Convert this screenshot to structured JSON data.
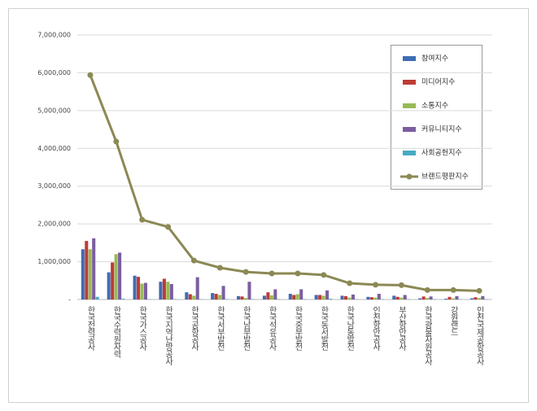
{
  "chart_data": {
    "type": "bar",
    "categories": [
      "한국전력공사",
      "한국수력원자력",
      "한국가스공사",
      "한국지역난방공사",
      "한국공항공사",
      "한국서부발전",
      "한국남부발전",
      "한국석유공사",
      "한국중부발전",
      "한국동서발전",
      "한국남동발전",
      "인천항만공사",
      "부산항만공사",
      "한국광물자원공사",
      "강원랜드",
      "인천국제공항공사"
    ],
    "series": [
      {
        "name": "참여지수",
        "color": "#3f6cb3",
        "values": [
          1330000,
          720000,
          630000,
          470000,
          190000,
          170000,
          90000,
          100000,
          150000,
          120000,
          100000,
          70000,
          100000,
          30000,
          20000,
          30000
        ]
      },
      {
        "name": "미디어지수",
        "color": "#bf3b36",
        "values": [
          1550000,
          980000,
          600000,
          550000,
          140000,
          150000,
          80000,
          190000,
          120000,
          120000,
          90000,
          60000,
          70000,
          80000,
          70000,
          60000
        ]
      },
      {
        "name": "소통지수",
        "color": "#99ba55",
        "values": [
          1330000,
          1200000,
          420000,
          470000,
          100000,
          120000,
          40000,
          110000,
          140000,
          100000,
          50000,
          50000,
          50000,
          40000,
          30000,
          40000
        ]
      },
      {
        "name": "커뮤니티지수",
        "color": "#7c5e9f",
        "values": [
          1620000,
          1240000,
          440000,
          410000,
          590000,
          360000,
          470000,
          270000,
          270000,
          240000,
          130000,
          150000,
          120000,
          80000,
          90000,
          90000
        ]
      },
      {
        "name": "사회공헌지수",
        "color": "#47a9c3",
        "values": [
          70000,
          20000,
          10000,
          10000,
          10000,
          10000,
          10000,
          10000,
          10000,
          20000,
          10000,
          10000,
          10000,
          10000,
          10000,
          10000
        ]
      },
      {
        "name": "브랜드평판지수",
        "color": "#8b8954",
        "type": "line",
        "values": [
          5940000,
          4180000,
          2110000,
          1920000,
          1030000,
          840000,
          730000,
          690000,
          690000,
          650000,
          430000,
          390000,
          380000,
          250000,
          250000,
          230000
        ]
      }
    ],
    "ylim": [
      0,
      7000000
    ],
    "yticks": [
      {
        "value": 0,
        "label": "-"
      },
      {
        "value": 1000000,
        "label": "1,000,000"
      },
      {
        "value": 2000000,
        "label": "2,000,000"
      },
      {
        "value": 3000000,
        "label": "3,000,000"
      },
      {
        "value": 4000000,
        "label": "4,000,000"
      },
      {
        "value": 5000000,
        "label": "5,000,000"
      },
      {
        "value": 6000000,
        "label": "6,000,000"
      },
      {
        "value": 7000000,
        "label": "7,000,000"
      }
    ],
    "grid": true
  }
}
